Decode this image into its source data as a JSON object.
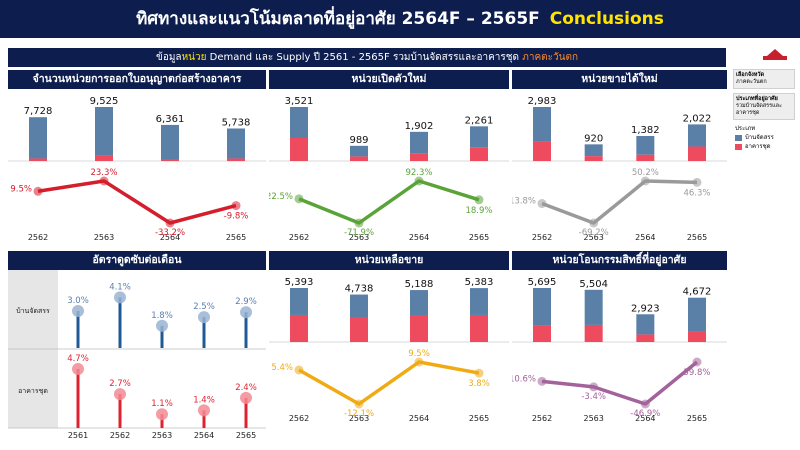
{
  "header": {
    "title": "ทิศทางและแนวโน้มตลาดที่อยู่อาศัย 2564F – 2565F",
    "highlight": "Conclusions"
  },
  "subheader": {
    "prefix": "ข้อมูล",
    "unit": "หน่วย",
    "middle": "Demand และ Supply ปี 2561 - 2565F รวมบ้านจัดสรรและอาคารชุด",
    "region": "ภาคตะวันตก"
  },
  "sidebar": {
    "region_label": "เลือกจังหวัด",
    "region_value": "ภาคตะวันตก",
    "type_label": "ประเภทที่อยู่อาศัย",
    "type_value_1": "รวมบ้านจัดสรรและ",
    "type_value_2": "อาคารชุด",
    "legend_title": "ประเภท",
    "legend_house": "บ้านจัดสรร",
    "legend_condo": "อาคารชุด"
  },
  "colors": {
    "navy": "#0c1d4e",
    "house": "#5b80a8",
    "condo": "#ef4b5f",
    "permits_line": "#d51e2c",
    "new_supply_line": "#5aa338",
    "new_sales_line": "#9a9a9a",
    "absorption_house": "#1f5a96",
    "absorption_condo": "#e0212f",
    "remaining_line": "#f0aa14",
    "transfers_line": "#a3629b"
  },
  "chart_data": [
    {
      "id": "permits",
      "type": "bar",
      "title": "จำนวนหน่วยการออกใบอนุญาตก่อสร้างอาคาร",
      "categories": [
        "2562",
        "2563",
        "2564",
        "2565"
      ],
      "totals": [
        7728,
        9525,
        6361,
        5738
      ],
      "total_labels": [
        "7,728",
        "9,525",
        "6,361",
        "5,738"
      ],
      "series": [
        {
          "name": "บ้านจัดสรร",
          "values": [
            7278,
            8625,
            6011,
            5288
          ]
        },
        {
          "name": "อาคารชุด",
          "values": [
            450,
            900,
            350,
            450
          ]
        }
      ],
      "growth": [
        9.5,
        23.3,
        -33.2,
        -9.8
      ],
      "growth_labels": [
        "9.5%",
        "23.3%",
        "-33.2%",
        "-9.8%"
      ],
      "growth_color": "#d51e2c"
    },
    {
      "id": "new_supply",
      "type": "bar",
      "title": "หน่วยเปิดตัวใหม่",
      "categories": [
        "2562",
        "2563",
        "2564",
        "2565"
      ],
      "totals": [
        3521,
        989,
        1902,
        2261
      ],
      "total_labels": [
        "3,521",
        "989",
        "1,902",
        "2,261"
      ],
      "series": [
        {
          "name": "บ้านจัดสรร",
          "values": [
            2021,
            689,
            1402,
            1361
          ]
        },
        {
          "name": "อาคารชุด",
          "values": [
            1500,
            300,
            500,
            900
          ]
        }
      ],
      "growth": [
        22.5,
        -71.9,
        92.3,
        18.9
      ],
      "growth_labels": [
        "22.5%",
        "-71.9%",
        "92.3%",
        "18.9%"
      ],
      "growth_color": "#5aa338"
    },
    {
      "id": "new_sales",
      "type": "bar",
      "title": "หน่วยขายได้ใหม่",
      "categories": [
        "2562",
        "2563",
        "2564",
        "2565"
      ],
      "totals": [
        2983,
        920,
        1382,
        2022
      ],
      "total_labels": [
        "2,983",
        "920",
        "1,382",
        "2,022"
      ],
      "series": [
        {
          "name": "บ้านจัดสรร",
          "values": [
            1883,
            650,
            1032,
            1222
          ]
        },
        {
          "name": "อาคารชุด",
          "values": [
            1100,
            270,
            350,
            800
          ]
        }
      ],
      "growth": [
        -13.8,
        -69.2,
        50.2,
        46.3
      ],
      "growth_labels": [
        "-13.8%",
        "-69.2%",
        "50.2%",
        "46.3%"
      ],
      "growth_color": "#9a9a9a"
    },
    {
      "id": "absorption",
      "type": "lollipop",
      "title": "อัตราดูดซับต่อเดือน",
      "categories": [
        "2561",
        "2562",
        "2563",
        "2564",
        "2565"
      ],
      "series": [
        {
          "name": "บ้านจัดสรร",
          "values": [
            3.0,
            4.1,
            1.8,
            2.5,
            2.9
          ],
          "labels": [
            "3.0%",
            "4.1%",
            "1.8%",
            "2.5%",
            "2.9%"
          ]
        },
        {
          "name": "อาคารชุด",
          "values": [
            4.7,
            2.7,
            1.1,
            1.4,
            2.4
          ],
          "labels": [
            "4.7%",
            "2.7%",
            "1.1%",
            "1.4%",
            "2.4%"
          ]
        }
      ]
    },
    {
      "id": "remaining",
      "type": "bar",
      "title": "หน่วยเหลือขาย",
      "categories": [
        "2562",
        "2563",
        "2564",
        "2565"
      ],
      "totals": [
        5393,
        4738,
        5188,
        5383
      ],
      "total_labels": [
        "5,393",
        "4,738",
        "5,188",
        "5,383"
      ],
      "series": [
        {
          "name": "บ้านจัดสรร",
          "values": [
            2693,
            2338,
            2588,
            2683
          ]
        },
        {
          "name": "อาคารชุด",
          "values": [
            2700,
            2400,
            2600,
            2700
          ]
        }
      ],
      "growth": [
        5.4,
        -12.1,
        9.5,
        3.8
      ],
      "growth_labels": [
        "5.4%",
        "-12.1%",
        "9.5%",
        "3.8%"
      ],
      "growth_color": "#f0aa14"
    },
    {
      "id": "transfers",
      "type": "bar",
      "title": "หน่วยโอนกรรมสิทธิ์ที่อยู่อาศัย",
      "categories": [
        "2562",
        "2563",
        "2564",
        "2565"
      ],
      "totals": [
        5695,
        5504,
        2923,
        4672
      ],
      "total_labels": [
        "5,695",
        "5,504",
        "2,923",
        "4,672"
      ],
      "series": [
        {
          "name": "บ้านจัดสรร",
          "values": [
            3995,
            3704,
            2123,
            3572
          ]
        },
        {
          "name": "อาคารชุด",
          "values": [
            1700,
            1800,
            800,
            1100
          ]
        }
      ],
      "growth": [
        10.6,
        -3.4,
        -46.9,
        59.8
      ],
      "growth_labels": [
        "10.6%",
        "-3.4%",
        "-46.9%",
        "59.8%"
      ],
      "growth_color": "#a3629b"
    }
  ]
}
